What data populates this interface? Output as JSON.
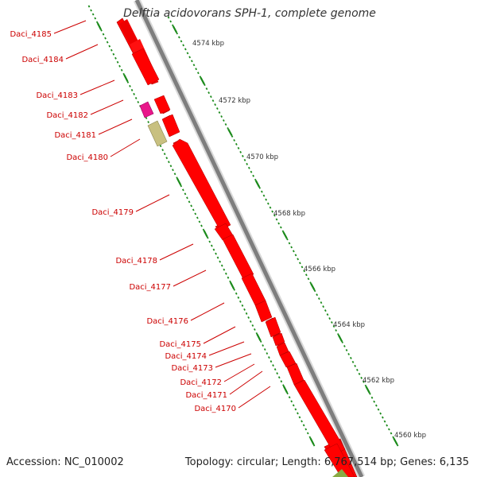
{
  "title": "Delftia acidovorans SPH-1, complete genome",
  "footer": {
    "accession": "Accession: NC_010002",
    "topology": "Topology: circular; Length: 6,767,514 bp; Genes: 6,135"
  },
  "genes": [
    "Daci_4185",
    "Daci_4184",
    "Daci_4183",
    "Daci_4182",
    "Daci_4181",
    "Daci_4180",
    "Daci_4179",
    "Daci_4178",
    "Daci_4177",
    "Daci_4176",
    "Daci_4175",
    "Daci_4174",
    "Daci_4173",
    "Daci_4172",
    "Daci_4171",
    "Daci_4170"
  ],
  "scale_labels": [
    "4574 kbp",
    "4572 kbp",
    "4570 kbp",
    "4568 kbp",
    "4566 kbp",
    "4564 kbp",
    "4562 kbp",
    "4560 kbp"
  ],
  "colors": {
    "gene_label": "#cc0000",
    "cds": "#ff0000",
    "rna_magenta": "#e8178a",
    "rna_olive": "#c8c080",
    "backbone": "#808080",
    "tick": "#1a8a1a",
    "misc_feature": "#88aa44"
  }
}
